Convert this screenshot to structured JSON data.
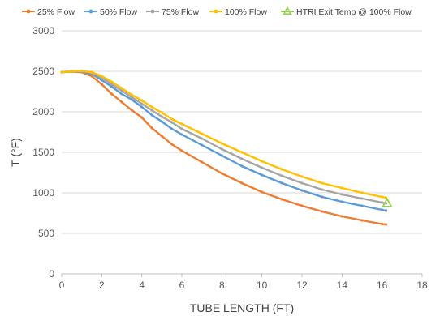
{
  "chart_data": {
    "type": "line",
    "title": "",
    "xlabel": "TUBE LENGTH (FT)",
    "ylabel": "T (°F)",
    "xlim": [
      0,
      18
    ],
    "ylim": [
      0,
      3000
    ],
    "xticks": [
      "0",
      "2",
      "4",
      "6",
      "8",
      "10",
      "12",
      "14",
      "16",
      "18"
    ],
    "yticks": [
      "0",
      "500",
      "1000",
      "1500",
      "2000",
      "2500",
      "3000"
    ],
    "grid": "horizontal",
    "legend_position": "top",
    "series": [
      {
        "name": "25% Flow",
        "color": "#ED7D31",
        "marker": "dot",
        "x": [
          0,
          0.5,
          1,
          1.5,
          2,
          2.5,
          3,
          3.5,
          4,
          4.5,
          5,
          5.5,
          6,
          7,
          8,
          9,
          10,
          11,
          12,
          13,
          14,
          15,
          16,
          16.2
        ],
        "y": [
          2490,
          2495,
          2490,
          2440,
          2340,
          2220,
          2120,
          2020,
          1930,
          1800,
          1700,
          1600,
          1520,
          1380,
          1240,
          1120,
          1010,
          920,
          840,
          770,
          710,
          660,
          615,
          610
        ]
      },
      {
        "name": "50% Flow",
        "color": "#5B9BD5",
        "marker": "dot",
        "x": [
          0,
          0.5,
          1,
          1.5,
          2,
          2.5,
          3,
          3.5,
          4,
          4.5,
          5,
          5.5,
          6,
          7,
          8,
          9,
          10,
          11,
          12,
          13,
          14,
          15,
          16,
          16.2
        ],
        "y": [
          2490,
          2500,
          2495,
          2470,
          2390,
          2310,
          2220,
          2150,
          2060,
          1960,
          1880,
          1790,
          1720,
          1590,
          1460,
          1330,
          1220,
          1120,
          1030,
          950,
          890,
          840,
          790,
          780
        ]
      },
      {
        "name": "75% Flow",
        "color": "#A5A5A5",
        "marker": "dot",
        "x": [
          0,
          0.5,
          1,
          1.5,
          2,
          2.5,
          3,
          3.5,
          4,
          4.5,
          5,
          5.5,
          6,
          7,
          8,
          9,
          10,
          11,
          12,
          13,
          14,
          15,
          16,
          16.2
        ],
        "y": [
          2490,
          2500,
          2500,
          2480,
          2420,
          2340,
          2260,
          2180,
          2100,
          2020,
          1940,
          1870,
          1790,
          1670,
          1540,
          1420,
          1310,
          1210,
          1120,
          1040,
          980,
          930,
          880,
          870
        ]
      },
      {
        "name": "100% Flow",
        "color": "#FFC000",
        "marker": "dot",
        "x": [
          0,
          0.5,
          1,
          1.5,
          2,
          2.5,
          3,
          3.5,
          4,
          4.5,
          5,
          5.5,
          6,
          7,
          8,
          9,
          10,
          11,
          12,
          13,
          14,
          15,
          16,
          16.2
        ],
        "y": [
          2490,
          2500,
          2505,
          2490,
          2440,
          2370,
          2290,
          2210,
          2140,
          2060,
          1990,
          1910,
          1850,
          1730,
          1610,
          1500,
          1390,
          1290,
          1200,
          1120,
          1060,
          1000,
          950,
          940
        ]
      },
      {
        "name": "HTRI Exit Temp @ 100% Flow",
        "color": "#92D050",
        "marker": "triangle",
        "x": [
          16.25
        ],
        "y": [
          870
        ]
      }
    ]
  }
}
